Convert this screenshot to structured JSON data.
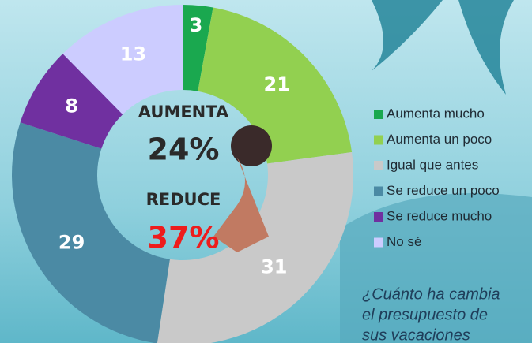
{
  "chart_data": {
    "type": "donut",
    "categories": [
      "Aumenta mucho",
      "Aumenta un poco",
      "Igual que antes",
      "Se reduce un poco",
      "Se reduce mucho",
      "No sé"
    ],
    "values": [
      3,
      21,
      31,
      29,
      8,
      13
    ],
    "colors": [
      "#1aa84f",
      "#92d050",
      "#c9c9c9",
      "#4b8aa4",
      "#7030a0",
      "#ccccff"
    ],
    "annotations": [
      "AUMENTA",
      "24%",
      "REDUCE",
      "37%"
    ],
    "question": [
      "¿Cuánto ha cambia",
      "el presupuesto de",
      "sus vacaciones"
    ],
    "legend": "right"
  }
}
